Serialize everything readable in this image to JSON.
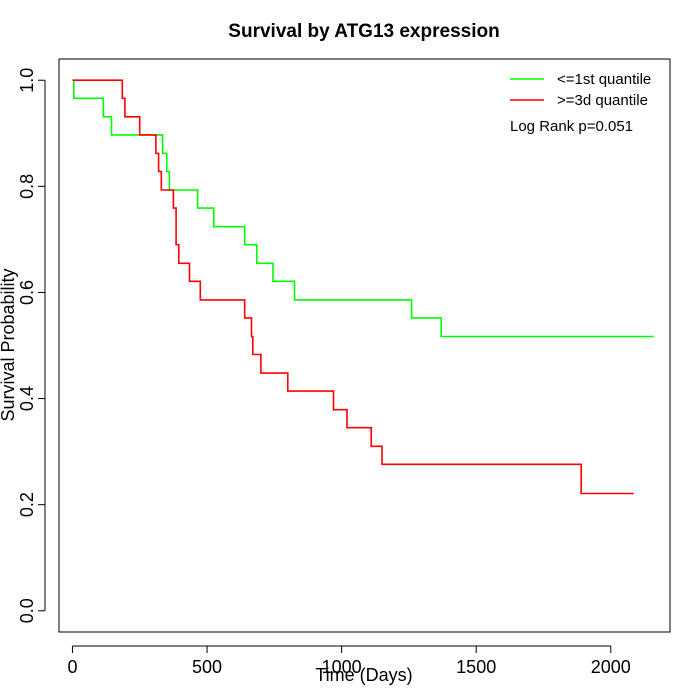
{
  "chart_data": {
    "type": "line",
    "title": "Survival by ATG13 expression",
    "xlabel": "Time (Days)",
    "ylabel": "Survival Probability",
    "xlim": [
      -50,
      2220
    ],
    "ylim": [
      -0.04,
      1.04
    ],
    "xticks": [
      0,
      500,
      1000,
      1500,
      2000
    ],
    "yticks": [
      0.0,
      0.2,
      0.4,
      0.6,
      0.8,
      1.0
    ],
    "xtick_labels": [
      "0",
      "500",
      "1000",
      "1500",
      "2000"
    ],
    "ytick_labels": [
      "0.0",
      "0.2",
      "0.4",
      "0.6",
      "0.8",
      "1.0"
    ],
    "grid": false,
    "legend_position": "top-right",
    "annotation": "Log Rank p=0.051",
    "series": [
      {
        "name": "<=1st quantile",
        "color": "#00ff00",
        "step_type": "post",
        "x": [
          0,
          5,
          115,
          145,
          310,
          335,
          350,
          360,
          465,
          525,
          640,
          685,
          745,
          825,
          1260,
          1370,
          2160
        ],
        "y": [
          1.0,
          0.966,
          0.931,
          0.897,
          0.897,
          0.862,
          0.828,
          0.793,
          0.759,
          0.724,
          0.69,
          0.655,
          0.621,
          0.586,
          0.552,
          0.517,
          0.517
        ]
      },
      {
        "name": ">=3d quantile",
        "color": "#ff0000",
        "step_type": "post",
        "x": [
          0,
          185,
          195,
          205,
          250,
          310,
          320,
          330,
          375,
          385,
          395,
          420,
          435,
          475,
          640,
          665,
          670,
          700,
          800,
          970,
          1020,
          1110,
          1150,
          1890,
          2085
        ],
        "y": [
          1.0,
          0.966,
          0.931,
          0.931,
          0.897,
          0.862,
          0.828,
          0.793,
          0.759,
          0.69,
          0.655,
          0.655,
          0.621,
          0.586,
          0.552,
          0.517,
          0.483,
          0.448,
          0.414,
          0.379,
          0.345,
          0.31,
          0.276,
          0.221,
          0.221
        ]
      }
    ]
  }
}
